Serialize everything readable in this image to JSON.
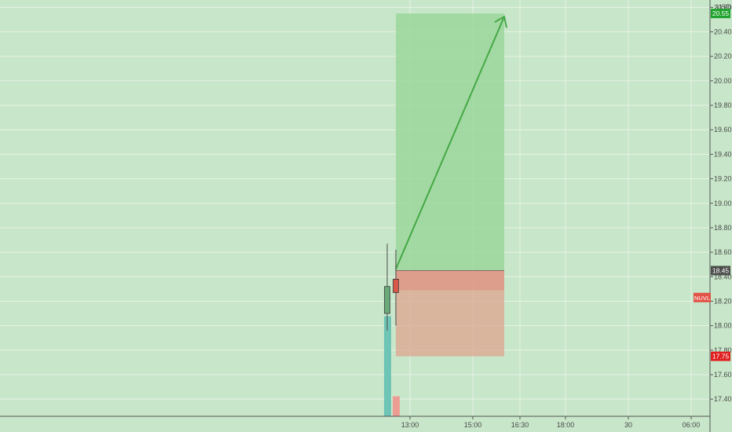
{
  "chart_data": {
    "type": "candlestick",
    "currency": "USD",
    "symbol": "NUVL",
    "x_ticks": [
      "13:00",
      "15:00",
      "16:30",
      "18:00",
      "30",
      "06:00"
    ],
    "y_ticks": [
      17.4,
      17.6,
      17.8,
      18.0,
      18.2,
      18.4,
      18.6,
      18.8,
      19.0,
      19.2,
      19.4,
      19.6,
      19.8,
      20.0,
      20.2,
      20.4,
      20.6
    ],
    "ylim": [
      17.26,
      20.66
    ],
    "candles": [
      {
        "open": 18.1,
        "high": 18.67,
        "low": 17.96,
        "close": 18.32,
        "direction": "up",
        "volume_level": 0.75
      },
      {
        "open": 18.38,
        "high": 18.62,
        "low": 18.0,
        "close": 18.27,
        "direction": "down",
        "volume_level": 0.15
      }
    ],
    "position": {
      "type": "long",
      "entry": 18.45,
      "target": 20.55,
      "stop": 17.75
    },
    "price_labels": [
      {
        "value": "20.55",
        "kind": "target",
        "color": "#1fa32e"
      },
      {
        "value": "18.45",
        "kind": "entry",
        "color": "#4d4d4d"
      },
      {
        "value": "17.75",
        "kind": "stop",
        "color": "#e02020"
      }
    ],
    "symbol_color": "#e35246",
    "grid": true,
    "colors": {
      "background": "#c8e6c9",
      "profit_zone": "#9bd69b",
      "loss_zone": "#e0a08a",
      "arrow": "#45a845",
      "candle_up": "#6aaa7a",
      "candle_down": "#d9574a",
      "volume_up": "#6fc5b5",
      "volume_down": "#ec9d93"
    }
  }
}
